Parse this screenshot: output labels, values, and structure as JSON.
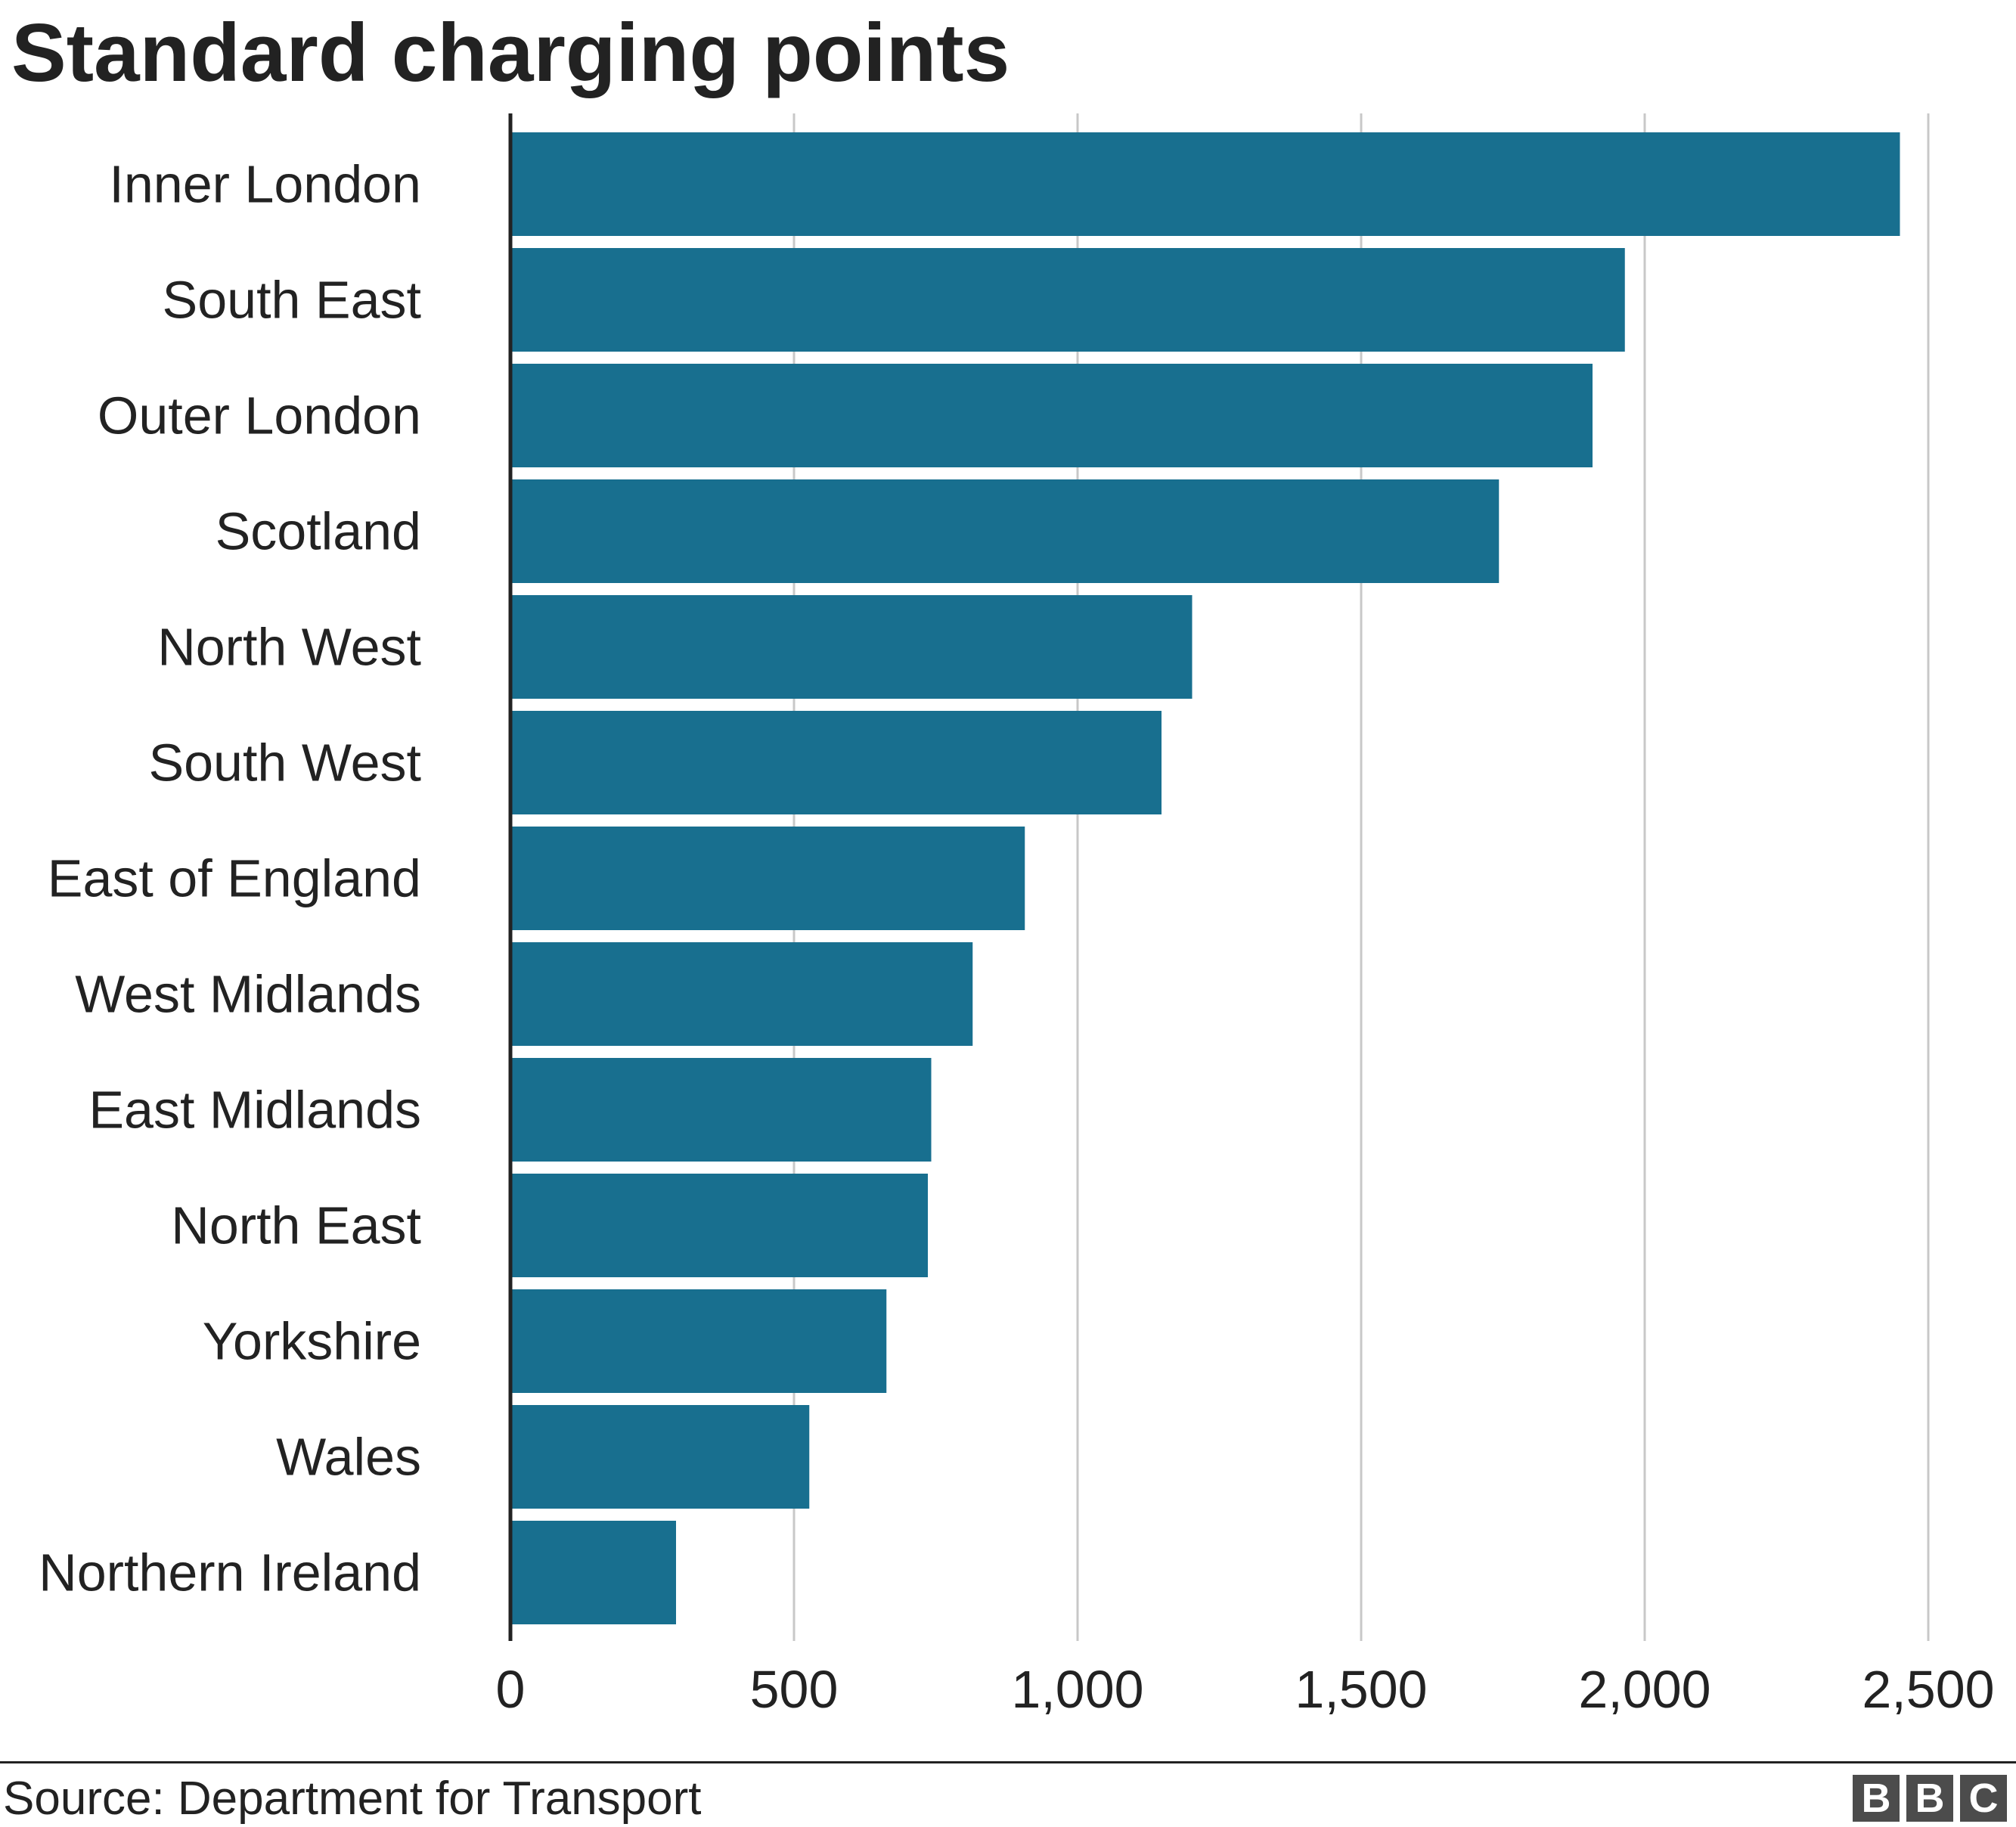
{
  "chart_data": {
    "type": "bar",
    "orientation": "horizontal",
    "title": "Standard charging points",
    "xlabel": "",
    "ylabel": "",
    "categories": [
      "Inner London",
      "South East",
      "Outer London",
      "Scotland",
      "North West",
      "South West",
      "East of England",
      "West Midlands",
      "East Midlands",
      "North East",
      "Yorkshire",
      "Wales",
      "Northern Ireland"
    ],
    "values": [
      2450,
      1965,
      1908,
      1743,
      1202,
      1148,
      907,
      815,
      742,
      736,
      663,
      527,
      292
    ],
    "xlim": [
      0,
      2500
    ],
    "ticks": [
      0,
      500,
      1000,
      1500,
      2000,
      2500
    ],
    "tick_labels": [
      "0",
      "500",
      "1,000",
      "1,500",
      "2,000",
      "2,500"
    ],
    "grid": "vertical",
    "bar_color": "#186f8f"
  },
  "footer": {
    "source": "Source: Department for Transport",
    "logo_letters": [
      "B",
      "B",
      "C"
    ]
  }
}
